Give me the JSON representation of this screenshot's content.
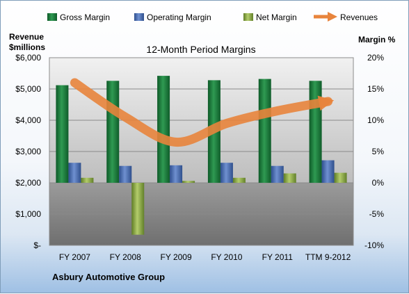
{
  "chart_data": {
    "type": "bar",
    "title": "12-Month Period Margins",
    "left_axis_title": [
      "Revenue",
      "$millions"
    ],
    "right_axis_title": "Margin %",
    "company": "Asbury Automotive Group",
    "categories": [
      "FY 2007",
      "FY 2008",
      "FY 2009",
      "FY 2010",
      "FY 2011",
      "TTM 9-2012"
    ],
    "left_axis": {
      "range": [
        0,
        6000
      ],
      "ticks": [
        "$-",
        "$1,000",
        "$2,000",
        "$3,000",
        "$4,000",
        "$5,000",
        "$6,000"
      ]
    },
    "right_axis": {
      "range": [
        -10,
        20
      ],
      "ticks": [
        "-10%",
        "-5%",
        "0%",
        "5%",
        "10%",
        "15%",
        "20%"
      ]
    },
    "series": [
      {
        "name": "Gross Margin",
        "axis": "right",
        "color": "#1f7a3d",
        "values": [
          15.6,
          16.3,
          17.1,
          16.4,
          16.6,
          16.3
        ]
      },
      {
        "name": "Operating Margin",
        "axis": "right",
        "color": "#4a6fb5",
        "values": [
          3.2,
          2.7,
          2.8,
          3.2,
          2.7,
          3.6
        ]
      },
      {
        "name": "Net Margin",
        "axis": "right",
        "color": "#8fae4a",
        "values": [
          0.8,
          -8.3,
          0.3,
          0.8,
          1.5,
          1.6
        ]
      },
      {
        "name": "Revenues",
        "axis": "left",
        "type": "line",
        "color": "#e8843c",
        "values": [
          5200,
          4100,
          3300,
          3900,
          4300,
          4600
        ]
      }
    ],
    "grid": true,
    "legend_position": "top"
  }
}
